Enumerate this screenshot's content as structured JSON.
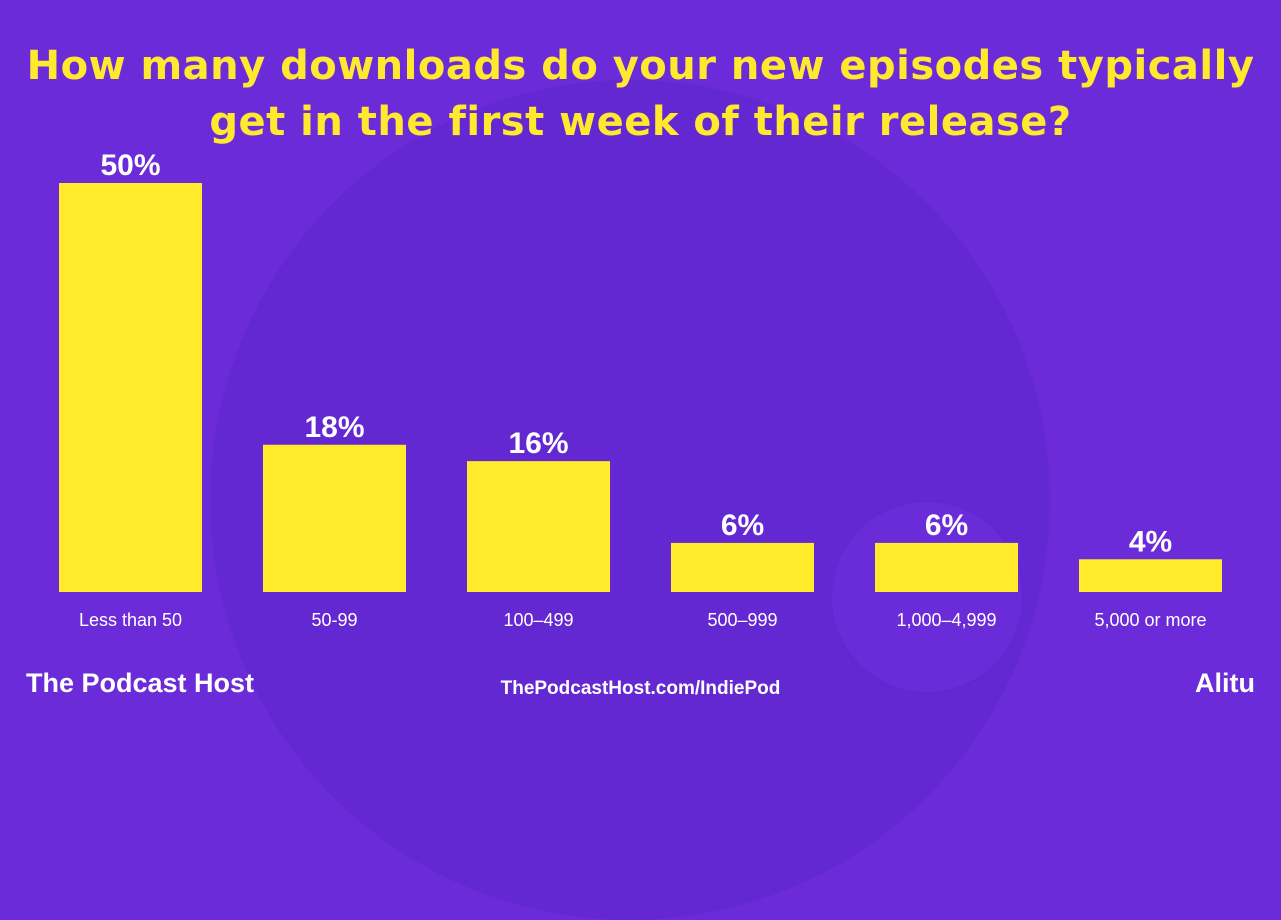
{
  "colors": {
    "background": "#6b2bd9",
    "bar": "#ffea2b",
    "title": "#ffe92e",
    "label": "#ffffff"
  },
  "title_lines": [
    "How many downloads do your new episodes typically",
    "get in the first week of their release?"
  ],
  "chart_data": {
    "type": "bar",
    "title": "How many downloads do your new episodes typically get in the first week of their release?",
    "categories": [
      "Less than 50",
      "50-99",
      "100–499",
      "500–999",
      "1,000–4,999",
      "5,000 or more"
    ],
    "values": [
      50,
      18,
      16,
      6,
      6,
      4
    ],
    "value_labels": [
      "50%",
      "18%",
      "16%",
      "6%",
      "6%",
      "4%"
    ],
    "xlabel": "",
    "ylabel": "",
    "ylim": [
      0,
      50
    ],
    "grid": false
  },
  "footer": {
    "brand_left": "The Podcast Host",
    "url": "ThePodcastHost.com/IndiePod",
    "brand_right": "Alitu"
  }
}
